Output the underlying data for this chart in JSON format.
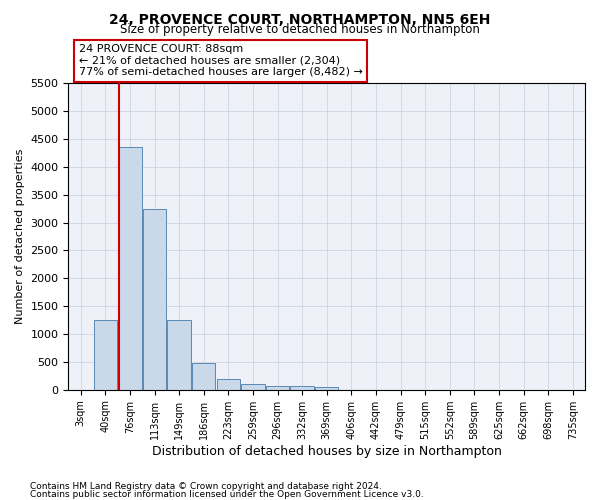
{
  "title": "24, PROVENCE COURT, NORTHAMPTON, NN5 6EH",
  "subtitle": "Size of property relative to detached houses in Northampton",
  "xlabel": "Distribution of detached houses by size in Northampton",
  "ylabel": "Number of detached properties",
  "footnote1": "Contains HM Land Registry data © Crown copyright and database right 2024.",
  "footnote2": "Contains public sector information licensed under the Open Government Licence v3.0.",
  "annotation_title": "24 PROVENCE COURT: 88sqm",
  "annotation_line1": "← 21% of detached houses are smaller (2,304)",
  "annotation_line2": "77% of semi-detached houses are larger (8,482) →",
  "bar_categories": [
    "3sqm",
    "40sqm",
    "76sqm",
    "113sqm",
    "149sqm",
    "186sqm",
    "223sqm",
    "259sqm",
    "296sqm",
    "332sqm",
    "369sqm",
    "406sqm",
    "442sqm",
    "479sqm",
    "515sqm",
    "552sqm",
    "589sqm",
    "625sqm",
    "662sqm",
    "698sqm",
    "735sqm"
  ],
  "bar_values": [
    0,
    1250,
    4350,
    3250,
    1250,
    475,
    200,
    100,
    75,
    60,
    50,
    0,
    0,
    0,
    0,
    0,
    0,
    0,
    0,
    0,
    0
  ],
  "bar_color": "#c9d9ea",
  "bar_edge_color": "#5a8ab5",
  "vline_color": "#cc0000",
  "vline_x_idx": 1.55,
  "annotation_box_color": "#cc0000",
  "ylim_max": 5500,
  "yticks": [
    0,
    500,
    1000,
    1500,
    2000,
    2500,
    3000,
    3500,
    4000,
    4500,
    5000,
    5500
  ],
  "bg_color": "#ffffff",
  "plot_bg_color": "#eef2f8",
  "grid_color": "#c8d0dc"
}
